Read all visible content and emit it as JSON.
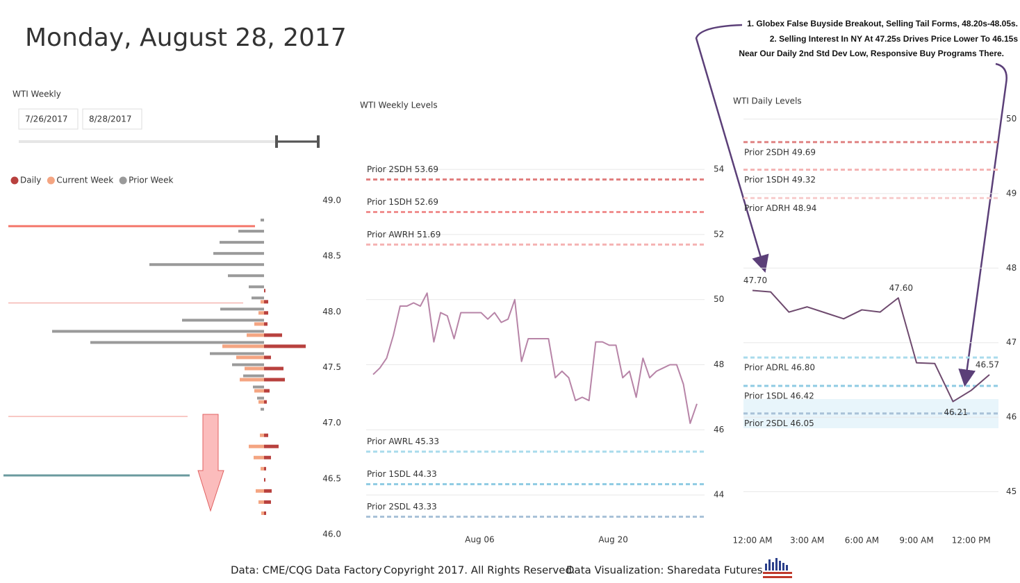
{
  "header": {
    "title": "Monday, August 28, 2017"
  },
  "annotations": [
    "1. Globex False Buyside Breakout, Selling Tail Forms, 48.20s-48.05s.",
    "2. Selling Interest In NY At 47.25s Drives Price Lower To 46.15s",
    "Near Our Daily 2nd Std Dev Low, Responsive Buy Programs There."
  ],
  "slicer": {
    "title": "WTI Weekly",
    "start": "7/26/2017",
    "end": "8/28/2017"
  },
  "chart_data": [
    {
      "type": "profile",
      "y": [
        48.8,
        48.7,
        48.6,
        48.5,
        48.4,
        48.3,
        48.2,
        48.1,
        48.0,
        47.9,
        47.8,
        47.7,
        47.6,
        47.5,
        47.4,
        47.3,
        47.2,
        47.1,
        47.0,
        46.9,
        46.8,
        46.7,
        46.6,
        46.5,
        46.4,
        46.3,
        46.2
      ],
      "series": [
        {
          "name": "Daily",
          "color": "#b8413e",
          "values": [
            null,
            null,
            null,
            null,
            null,
            null,
            2,
            6,
            6,
            5,
            26,
            60,
            10,
            28,
            30,
            8,
            4,
            null,
            null,
            6,
            21,
            10,
            3,
            2,
            11,
            10,
            3
          ]
        },
        {
          "name": "Current Week",
          "color": "#f4a582",
          "values": [
            null,
            null,
            null,
            null,
            null,
            null,
            null,
            5,
            8,
            14,
            25,
            60,
            40,
            28,
            35,
            14,
            8,
            null,
            null,
            6,
            22,
            15,
            5,
            null,
            12,
            8,
            4
          ]
        },
        {
          "name": "Prior Week",
          "color": "#9a9a9a",
          "values": [
            5,
            37,
            64,
            73,
            165,
            52,
            22,
            18,
            63,
            118,
            305,
            250,
            78,
            46,
            30,
            16,
            10,
            5,
            null,
            null,
            null,
            null,
            null,
            null,
            null,
            null,
            null
          ]
        }
      ],
      "levels": [
        {
          "value": 48.77,
          "color": "#f4776b"
        },
        {
          "value": 48.08,
          "color": "#f5b5b0"
        },
        {
          "value": 47.06,
          "color": "#f5b5b0"
        },
        {
          "value": 46.53,
          "color": "#6a9a9e"
        }
      ],
      "xlim": [
        0,
        370
      ],
      "ylim": [
        46.0,
        49.0
      ],
      "yticks": [
        {
          "value": 46.0,
          "label": "46.0"
        },
        46.5,
        {
          "value": 47.0,
          "label": "47.0"
        },
        47.5,
        {
          "value": 48.0,
          "label": "48.0"
        },
        48.5,
        {
          "value": 49.0,
          "label": "49.0"
        }
      ]
    },
    {
      "type": "line",
      "title": "WTI Weekly Levels",
      "color": "#b784a7",
      "values": [
        47.7,
        47.9,
        48.2,
        48.9,
        49.8,
        49.8,
        49.9,
        49.8,
        50.2,
        48.7,
        49.6,
        49.5,
        48.8,
        49.6,
        49.6,
        49.6,
        49.6,
        49.4,
        49.6,
        49.3,
        49.4,
        50.0,
        48.1,
        48.8,
        48.8,
        48.8,
        48.8,
        47.6,
        47.8,
        47.6,
        46.9,
        47.0,
        46.9,
        48.7,
        48.7,
        48.6,
        48.6,
        47.6,
        47.8,
        47.0,
        48.2,
        47.6,
        47.8,
        47.9,
        48.0,
        48.0,
        47.4,
        46.2,
        46.8
      ],
      "xlim": [
        0,
        48
      ],
      "xticks": [
        {
          "value": 15.8,
          "label": "Aug 06"
        },
        {
          "value": 35.6,
          "label": "Aug 20"
        }
      ],
      "ylim": [
        43,
        54.3
      ],
      "yticks": [
        44,
        46,
        48,
        50,
        52,
        54
      ],
      "grid": true,
      "reference_lines": [
        {
          "label": "Prior 2SDH 53.69",
          "value": 53.69,
          "color": "#e07d7d"
        },
        {
          "label": "Prior 1SDH 52.69",
          "value": 52.69,
          "color": "#f08f8f"
        },
        {
          "label": "Prior AWRH 51.69",
          "value": 51.69,
          "color": "#f5b3b3"
        },
        {
          "label": "Prior AWRL 45.33",
          "value": 45.33,
          "color": "#a9dbec"
        },
        {
          "label": "Prior 1SDL 44.33",
          "value": 44.33,
          "color": "#8fcbe3"
        },
        {
          "label": "Prior 2SDL 43.33",
          "value": 43.33,
          "color": "#a9c2d8"
        }
      ]
    },
    {
      "type": "line",
      "title": "WTI Daily Levels",
      "color": "#6e4a6e",
      "values": [
        47.7,
        47.68,
        47.41,
        47.48,
        47.4,
        47.32,
        47.44,
        47.41,
        47.6,
        46.73,
        46.72,
        46.21,
        46.36,
        46.57
      ],
      "value_labels": [
        "47.70",
        null,
        null,
        null,
        null,
        null,
        null,
        null,
        "47.60",
        null,
        null,
        "46.21",
        null,
        "46.57"
      ],
      "xlim": [
        0,
        13
      ],
      "xticks": [
        {
          "value": 0,
          "label": "12:00 AM"
        },
        {
          "value": 3,
          "label": "3:00 AM"
        },
        {
          "value": 6,
          "label": "6:00 AM"
        },
        {
          "value": 9,
          "label": "9:00 AM"
        },
        {
          "value": 12,
          "label": "12:00 PM"
        }
      ],
      "ylim": [
        44.8,
        50.2
      ],
      "yticks": [
        45,
        46,
        47,
        48,
        49,
        50
      ],
      "grid": true,
      "reference_lines": [
        {
          "label": "Prior 2SDH 49.69",
          "value": 49.69,
          "color": "#e08585"
        },
        {
          "label": "Prior 1SDH 49.32",
          "value": 49.32,
          "color": "#f4b4b4"
        },
        {
          "label": "Prior ADRH 48.94",
          "value": 48.94,
          "color": "#f7cccc"
        },
        {
          "label": "Prior ADRL 46.80",
          "value": 46.8,
          "color": "#a9dbec"
        },
        {
          "label": "Prior 1SDL 46.42",
          "value": 46.42,
          "color": "#8fcbe3"
        },
        {
          "label": "Prior 2SDL 46.05",
          "value": 46.05,
          "color": "#a9c2d8"
        }
      ]
    }
  ],
  "footer": [
    "Data: CME/CQG Data Factory",
    "Copyright 2017. All Rights Reserved.",
    "Data Visualization: Sharedata Futures"
  ]
}
